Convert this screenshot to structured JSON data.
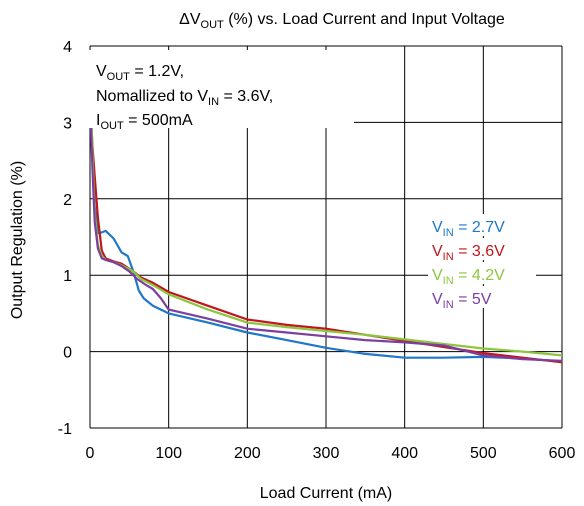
{
  "chart_data": {
    "type": "line",
    "title": "ΔV",
    "title_sub": "OUT",
    "title_rest": " (%) vs. Load Current and Input Voltage",
    "xlabel": "Load Current (mA)",
    "ylabel": "Output Regulation (%)",
    "xlim": [
      0,
      600
    ],
    "ylim": [
      -1,
      4
    ],
    "x_ticks": [
      "0",
      "100",
      "200",
      "300",
      "400",
      "500",
      "600"
    ],
    "y_ticks": [
      "-1",
      "0",
      "1",
      "2",
      "3",
      "4"
    ],
    "grid": true,
    "legend_position": "right",
    "annotation": {
      "line1_prefix": "V",
      "line1_sub": "OUT",
      "line1_rest": "  = 1.2V,",
      "line2_prefix": "Nomallized to V",
      "line2_sub": "IN",
      "line2_rest": " = 3.6V,",
      "line3_prefix": "I",
      "line3_sub": "OUT",
      "line3_rest": " = 500mA"
    },
    "series": [
      {
        "name": "V",
        "sub": "IN",
        "rest": " = 2.7V",
        "color": "#1f77c8",
        "points": [
          [
            0,
            3.3
          ],
          [
            3,
            2.6
          ],
          [
            6,
            1.9
          ],
          [
            10,
            1.55
          ],
          [
            15,
            1.56
          ],
          [
            20,
            1.58
          ],
          [
            30,
            1.48
          ],
          [
            40,
            1.3
          ],
          [
            48,
            1.25
          ],
          [
            55,
            1.05
          ],
          [
            62,
            0.8
          ],
          [
            68,
            0.7
          ],
          [
            80,
            0.6
          ],
          [
            100,
            0.5
          ],
          [
            150,
            0.38
          ],
          [
            200,
            0.25
          ],
          [
            250,
            0.15
          ],
          [
            300,
            0.05
          ],
          [
            350,
            -0.03
          ],
          [
            400,
            -0.08
          ],
          [
            450,
            -0.08
          ],
          [
            500,
            -0.07
          ],
          [
            550,
            -0.09
          ],
          [
            600,
            -0.13
          ]
        ]
      },
      {
        "name": "V",
        "sub": "IN",
        "rest": " = 3.6V",
        "color": "#c0161c",
        "points": [
          [
            0,
            3.35
          ],
          [
            3,
            2.7
          ],
          [
            6,
            2.3
          ],
          [
            10,
            1.75
          ],
          [
            15,
            1.32
          ],
          [
            20,
            1.22
          ],
          [
            30,
            1.18
          ],
          [
            40,
            1.15
          ],
          [
            55,
            1.05
          ],
          [
            65,
            0.97
          ],
          [
            80,
            0.9
          ],
          [
            100,
            0.78
          ],
          [
            150,
            0.6
          ],
          [
            200,
            0.42
          ],
          [
            250,
            0.35
          ],
          [
            300,
            0.3
          ],
          [
            350,
            0.22
          ],
          [
            400,
            0.14
          ],
          [
            450,
            0.06
          ],
          [
            500,
            -0.02
          ],
          [
            550,
            -0.08
          ],
          [
            600,
            -0.14
          ]
        ]
      },
      {
        "name": "V",
        "sub": "IN",
        "rest": " = 4.2V",
        "color": "#8cc63f",
        "points": [
          [
            0,
            3.75
          ],
          [
            3,
            2.6
          ],
          [
            6,
            1.8
          ],
          [
            10,
            1.4
          ],
          [
            15,
            1.25
          ],
          [
            20,
            1.2
          ],
          [
            30,
            1.17
          ],
          [
            40,
            1.13
          ],
          [
            55,
            1.05
          ],
          [
            65,
            0.95
          ],
          [
            80,
            0.87
          ],
          [
            100,
            0.75
          ],
          [
            150,
            0.55
          ],
          [
            200,
            0.38
          ],
          [
            250,
            0.32
          ],
          [
            300,
            0.27
          ],
          [
            350,
            0.22
          ],
          [
            400,
            0.16
          ],
          [
            450,
            0.1
          ],
          [
            500,
            0.04
          ],
          [
            550,
            0.0
          ],
          [
            600,
            -0.05
          ]
        ]
      },
      {
        "name": "V",
        "sub": "IN",
        "rest": " = 5V",
        "color": "#7b3fa0",
        "points": [
          [
            0,
            3.3
          ],
          [
            3,
            2.4
          ],
          [
            6,
            1.7
          ],
          [
            10,
            1.35
          ],
          [
            15,
            1.22
          ],
          [
            20,
            1.2
          ],
          [
            30,
            1.17
          ],
          [
            40,
            1.12
          ],
          [
            50,
            1.05
          ],
          [
            60,
            0.95
          ],
          [
            70,
            0.88
          ],
          [
            80,
            0.82
          ],
          [
            90,
            0.7
          ],
          [
            100,
            0.55
          ],
          [
            150,
            0.43
          ],
          [
            200,
            0.3
          ],
          [
            250,
            0.25
          ],
          [
            300,
            0.2
          ],
          [
            350,
            0.15
          ],
          [
            400,
            0.12
          ],
          [
            450,
            0.08
          ],
          [
            500,
            -0.05
          ],
          [
            550,
            -0.1
          ],
          [
            600,
            -0.12
          ]
        ]
      }
    ]
  }
}
